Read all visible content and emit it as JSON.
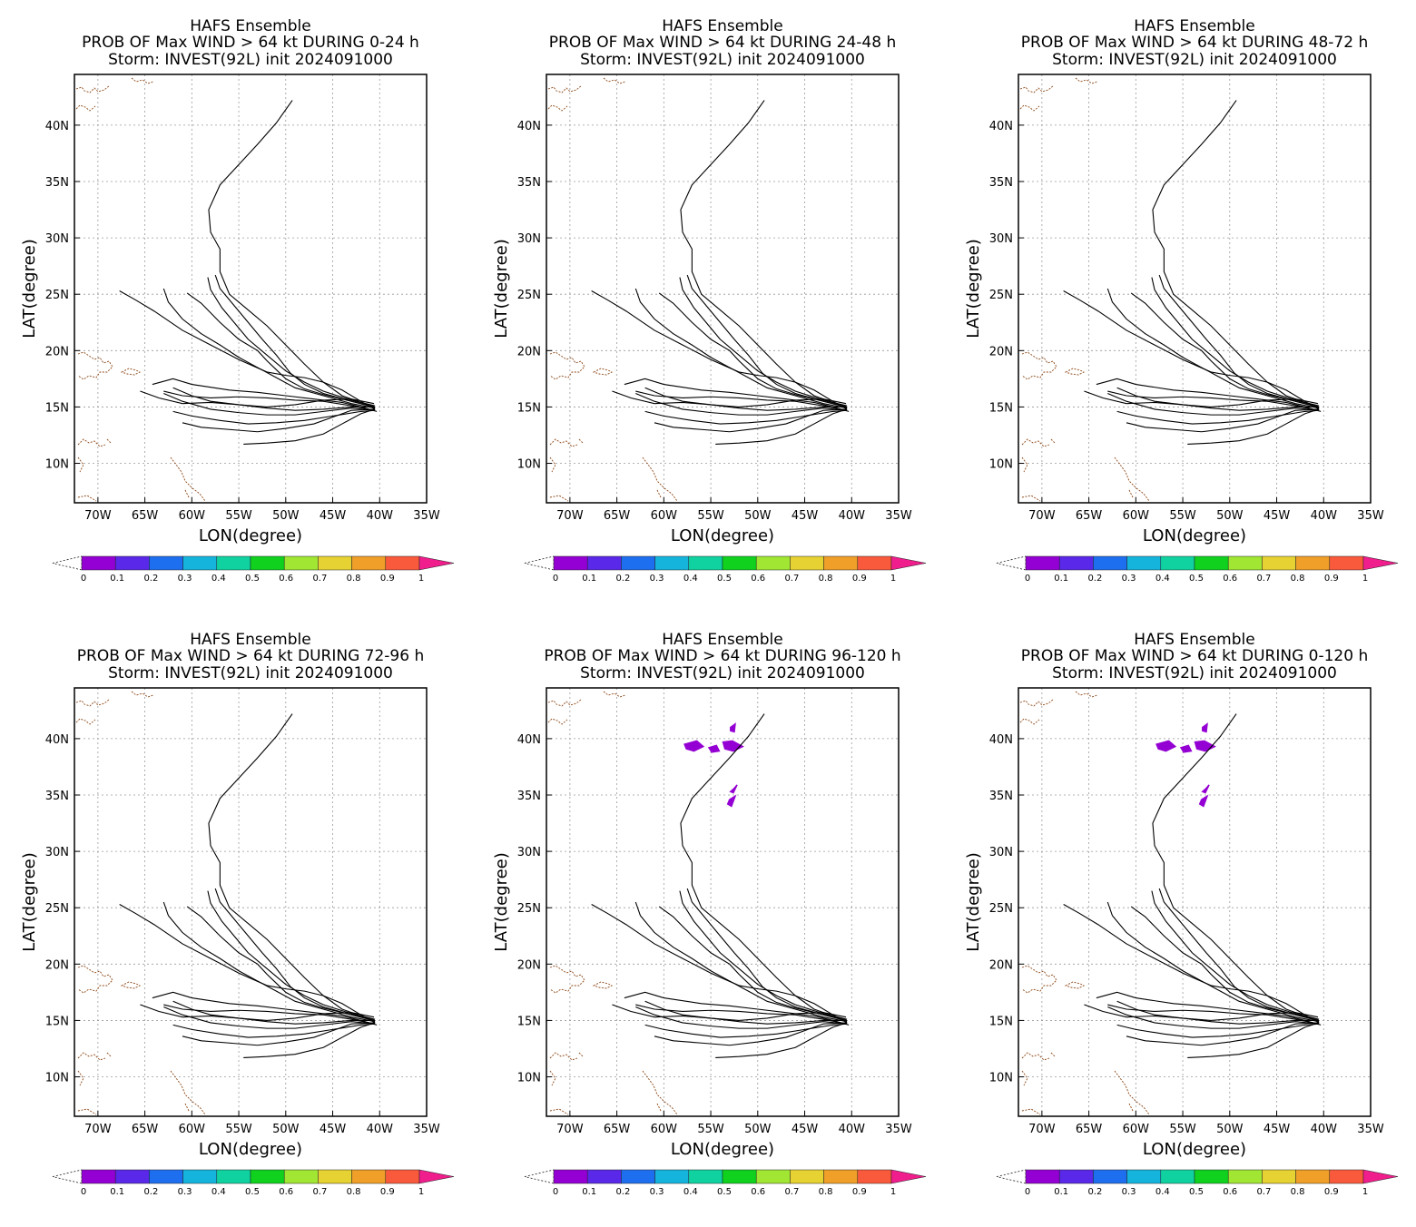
{
  "figure": {
    "panels": [
      {
        "title_line1": "HAFS Ensemble",
        "title_line2": "PROB OF Max WIND > 64 kt DURING  0-24 h",
        "title_line3": "Storm: INVEST(92L) init 2024091000",
        "show_prob": false
      },
      {
        "title_line1": "HAFS Ensemble",
        "title_line2": "PROB OF Max WIND > 64 kt DURING 24-48 h",
        "title_line3": "Storm: INVEST(92L) init 2024091000",
        "show_prob": false
      },
      {
        "title_line1": "HAFS Ensemble",
        "title_line2": "PROB OF Max WIND > 64 kt DURING 48-72 h",
        "title_line3": "Storm: INVEST(92L) init 2024091000",
        "show_prob": false
      },
      {
        "title_line1": "HAFS Ensemble",
        "title_line2": "PROB OF Max WIND > 64 kt DURING 72-96 h",
        "title_line3": "Storm: INVEST(92L) init 2024091000",
        "show_prob": false
      },
      {
        "title_line1": "HAFS Ensemble",
        "title_line2": "PROB OF Max WIND > 64 kt DURING 96-120 h",
        "title_line3": "Storm: INVEST(92L) init 2024091000",
        "show_prob": true
      },
      {
        "title_line1": "HAFS Ensemble",
        "title_line2": "PROB OF Max WIND > 64 kt DURING 0-120 h",
        "title_line3": "Storm: INVEST(92L) init 2024091000",
        "show_prob": true
      }
    ]
  },
  "chart_data": {
    "type": "map",
    "xlabel": "LON(degree)",
    "ylabel": "LAT(degree)",
    "xlim": [
      -72.5,
      -35
    ],
    "ylim": [
      6.5,
      44.5
    ],
    "x_ticks": [
      -70,
      -65,
      -60,
      -55,
      -50,
      -45,
      -40,
      -35
    ],
    "x_tick_labels": [
      "70W",
      "65W",
      "60W",
      "55W",
      "50W",
      "45W",
      "40W",
      "35W"
    ],
    "y_ticks": [
      10,
      15,
      20,
      25,
      30,
      35,
      40
    ],
    "y_tick_labels": [
      "10N",
      "15N",
      "20N",
      "25N",
      "30N",
      "35N",
      "40N"
    ],
    "grid": true,
    "colorbar": {
      "ticks": [
        "0",
        "0.1",
        "0.2",
        "0.3",
        "0.4",
        "0.5",
        "0.6",
        "0.7",
        "0.8",
        "0.9",
        "1"
      ],
      "colors": [
        "#9400d3",
        "#5a28e8",
        "#1e6ef0",
        "#14b4dc",
        "#10d2a0",
        "#10d21e",
        "#a0e632",
        "#e6d232",
        "#f0a028",
        "#fa5a3c"
      ],
      "over_color": "#f01e8c"
    },
    "tracks": [
      [
        [
          -40.3,
          14.6
        ],
        [
          -42,
          15
        ],
        [
          -44,
          15.4
        ],
        [
          -47,
          15.7
        ],
        [
          -50,
          16
        ],
        [
          -53,
          16.3
        ],
        [
          -56,
          16.5
        ],
        [
          -60,
          17
        ],
        [
          -62,
          17.5
        ],
        [
          -64.2,
          17
        ]
      ],
      [
        [
          -40.5,
          14.7
        ],
        [
          -43,
          15.1
        ],
        [
          -46,
          15.5
        ],
        [
          -49,
          15.6
        ],
        [
          -52,
          15.8
        ],
        [
          -55,
          15.9
        ],
        [
          -58,
          15.8
        ],
        [
          -61,
          16
        ],
        [
          -63,
          16.4
        ]
      ],
      [
        [
          -40.5,
          14.8
        ],
        [
          -42,
          15.5
        ],
        [
          -44,
          16.5
        ],
        [
          -46,
          17.2
        ],
        [
          -48,
          17.6
        ],
        [
          -50,
          17.8
        ],
        [
          -52,
          18.1
        ],
        [
          -55,
          19.2
        ],
        [
          -58,
          20.5
        ],
        [
          -61,
          21.8
        ],
        [
          -64,
          23.5
        ],
        [
          -66,
          24.5
        ],
        [
          -67.7,
          25.3
        ]
      ],
      [
        [
          -40.5,
          14.9
        ],
        [
          -43,
          15.3
        ],
        [
          -46,
          16
        ],
        [
          -49,
          16.7
        ],
        [
          -51,
          17.6
        ],
        [
          -53,
          18.5
        ],
        [
          -55,
          19.4
        ],
        [
          -57,
          20.5
        ],
        [
          -59,
          21.5
        ],
        [
          -61,
          22.8
        ],
        [
          -62.5,
          24.3
        ],
        [
          -63,
          25.5
        ]
      ],
      [
        [
          -40.6,
          15
        ],
        [
          -43,
          15.5
        ],
        [
          -46,
          16.1
        ],
        [
          -48,
          16.6
        ],
        [
          -50,
          17.5
        ],
        [
          -51,
          18.3
        ],
        [
          -52,
          19.1
        ],
        [
          -53,
          20
        ],
        [
          -55,
          21
        ],
        [
          -57,
          22.5
        ],
        [
          -59,
          24.2
        ],
        [
          -60.5,
          25.1
        ]
      ],
      [
        [
          -40.6,
          15.1
        ],
        [
          -43,
          15.6
        ],
        [
          -46,
          16.4
        ],
        [
          -48,
          17.2
        ],
        [
          -50,
          18.2
        ],
        [
          -52,
          19.6
        ],
        [
          -54,
          21
        ],
        [
          -55.5,
          22.5
        ],
        [
          -56.8,
          23.8
        ],
        [
          -58,
          25.4
        ],
        [
          -58.3,
          26.5
        ]
      ],
      [
        [
          -40.6,
          15
        ],
        [
          -43,
          15.5
        ],
        [
          -46,
          16.2
        ],
        [
          -48,
          17
        ],
        [
          -49.5,
          18
        ],
        [
          -51,
          19.6
        ],
        [
          -52.5,
          21
        ],
        [
          -54,
          22.5
        ],
        [
          -55.8,
          24.3
        ],
        [
          -57,
          25.5
        ],
        [
          -57.5,
          26.7
        ]
      ],
      [
        [
          -40.5,
          15.1
        ],
        [
          -42,
          15.4
        ],
        [
          -44,
          16
        ],
        [
          -46,
          17.2
        ],
        [
          -48,
          18.8
        ],
        [
          -50,
          20.5
        ],
        [
          -52,
          22.2
        ],
        [
          -54,
          23.6
        ],
        [
          -56,
          25
        ],
        [
          -57,
          27
        ],
        [
          -57,
          29
        ],
        [
          -58,
          30.5
        ],
        [
          -58.2,
          32.5
        ],
        [
          -57,
          34.7
        ],
        [
          -55,
          36.5
        ],
        [
          -53,
          38.3
        ],
        [
          -51,
          40.2
        ],
        [
          -49.3,
          42.2
        ]
      ],
      [
        [
          -40.5,
          14.7
        ],
        [
          -43,
          14.9
        ],
        [
          -46,
          14.6
        ],
        [
          -49,
          14.3
        ],
        [
          -52,
          14.3
        ],
        [
          -55,
          14.5
        ],
        [
          -58,
          14.8
        ],
        [
          -61,
          15.5
        ],
        [
          -63,
          16.2
        ]
      ],
      [
        [
          -40.5,
          14.7
        ],
        [
          -42,
          14.6
        ],
        [
          -45,
          14.2
        ],
        [
          -48,
          13.8
        ],
        [
          -51,
          13.6
        ],
        [
          -54,
          13.5
        ],
        [
          -57,
          13.8
        ],
        [
          -60,
          14.2
        ],
        [
          -62,
          14.6
        ]
      ],
      [
        [
          -40.5,
          14.8
        ],
        [
          -43,
          14.7
        ],
        [
          -45,
          14.1
        ],
        [
          -47,
          13.5
        ],
        [
          -50,
          13.1
        ],
        [
          -53,
          12.8
        ],
        [
          -56,
          13
        ],
        [
          -59,
          13.2
        ],
        [
          -61,
          13.6
        ]
      ],
      [
        [
          -40.5,
          14.8
        ],
        [
          -42,
          14.4
        ],
        [
          -44,
          13.5
        ],
        [
          -46,
          12.6
        ],
        [
          -49,
          12
        ],
        [
          -52,
          11.8
        ],
        [
          -54.5,
          11.7
        ]
      ],
      [
        [
          -40.6,
          15.3
        ],
        [
          -43,
          15.7
        ],
        [
          -46,
          15.6
        ],
        [
          -49,
          15.2
        ],
        [
          -52,
          15
        ],
        [
          -55,
          15.2
        ],
        [
          -58,
          15.4
        ],
        [
          -61,
          15.3
        ],
        [
          -63.5,
          15.8
        ],
        [
          -65.5,
          16.4
        ]
      ],
      [
        [
          -40.5,
          15
        ],
        [
          -43,
          15
        ],
        [
          -46,
          14.8
        ],
        [
          -49,
          14.7
        ],
        [
          -52,
          14.9
        ],
        [
          -55,
          15.2
        ],
        [
          -58,
          15.5
        ],
        [
          -60,
          16
        ],
        [
          -62,
          16.7
        ]
      ]
    ],
    "prob_patches": [
      [
        [
          -57.8,
          39.5
        ],
        [
          -56.5,
          39.8
        ],
        [
          -55.8,
          39.3
        ],
        [
          -56.8,
          38.9
        ],
        [
          -57.6,
          39.1
        ]
      ],
      [
        [
          -55.2,
          39.2
        ],
        [
          -54.4,
          39.4
        ],
        [
          -54.1,
          38.9
        ],
        [
          -54.9,
          38.8
        ]
      ],
      [
        [
          -53.7,
          39.7
        ],
        [
          -52.7,
          39.8
        ],
        [
          -51.6,
          39.3
        ],
        [
          -52.6,
          38.9
        ],
        [
          -53.5,
          39.1
        ]
      ],
      [
        [
          -52.9,
          41
        ],
        [
          -52.4,
          41.3
        ],
        [
          -52.5,
          40.6
        ],
        [
          -52.9,
          40.7
        ]
      ],
      [
        [
          -52.5,
          35.6
        ],
        [
          -52.2,
          35.9
        ],
        [
          -52.6,
          35.2
        ],
        [
          -52.9,
          35.3
        ]
      ],
      [
        [
          -53,
          34.6
        ],
        [
          -52.4,
          34.9
        ],
        [
          -52.8,
          34
        ],
        [
          -53.2,
          34.2
        ]
      ]
    ]
  }
}
